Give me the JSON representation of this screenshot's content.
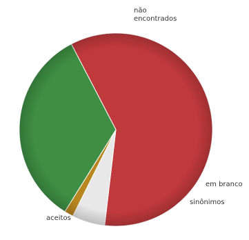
{
  "chart_data": {
    "type": "pie",
    "title": "",
    "slices": [
      {
        "label_lines": [
          "não",
          "encontrados"
        ],
        "value": 59.5,
        "color": "#C0393C"
      },
      {
        "label_lines": [
          "em branco"
        ],
        "value": 5.5,
        "color": "#E8E8E8"
      },
      {
        "label_lines": [
          "sinônimos"
        ],
        "value": 1.5,
        "color": "#B8861F"
      },
      {
        "label_lines": [
          "aceitos"
        ],
        "value": 33.5,
        "color": "#3E8E43"
      }
    ],
    "legend": "none"
  }
}
